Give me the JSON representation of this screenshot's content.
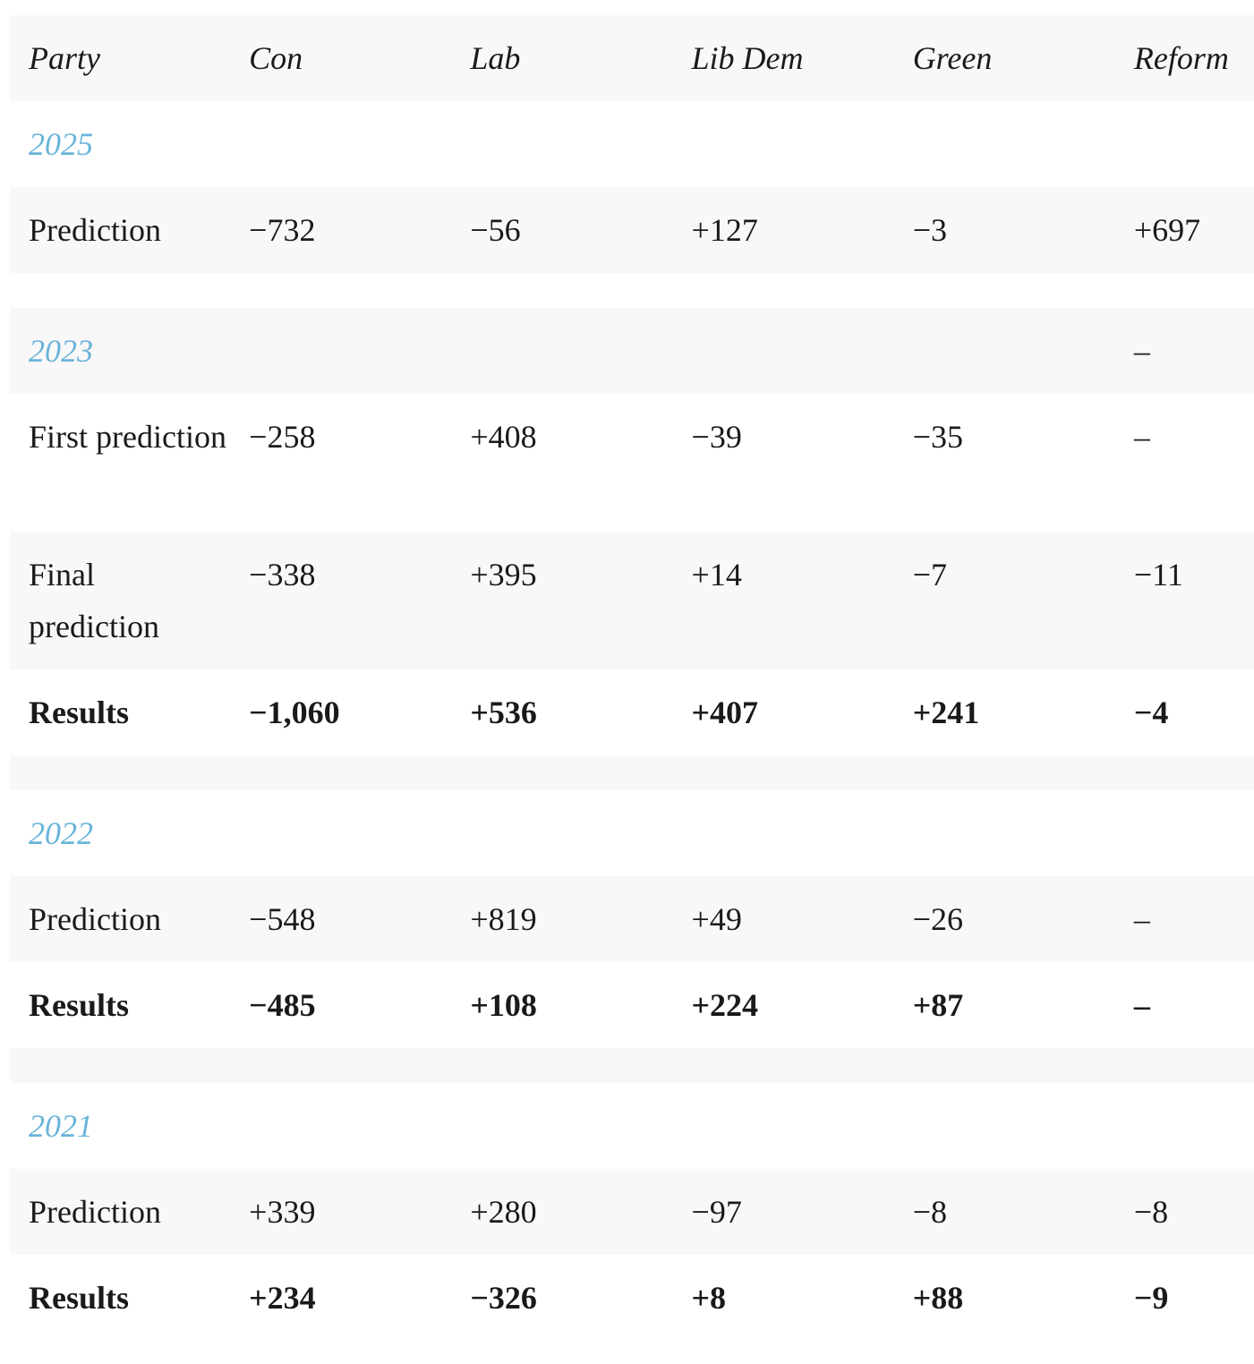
{
  "header": [
    "Party",
    "Con",
    "Lab",
    "Lib Dem",
    "Green",
    "Reform"
  ],
  "sections": [
    {
      "year": "2025",
      "year_reform": "",
      "rows": [
        {
          "label": "Prediction",
          "values": [
            "−732",
            "−56",
            "+127",
            "−3",
            "+697"
          ]
        }
      ]
    },
    {
      "year": "2023",
      "year_reform": "–",
      "rows": [
        {
          "label": "First prediction",
          "values": [
            "−258",
            "+408",
            "−39",
            "−35",
            "–"
          ]
        },
        {
          "label": "Final prediction",
          "values": [
            "−338",
            "+395",
            "+14",
            "−7",
            "−11"
          ]
        },
        {
          "label": "Results",
          "values": [
            "−1,060",
            "+536",
            "+407",
            "+241",
            "−4"
          ]
        }
      ]
    },
    {
      "year": "2022",
      "year_reform": "",
      "rows": [
        {
          "label": "Prediction",
          "values": [
            "−548",
            "+819",
            "+49",
            "−26",
            "–"
          ]
        },
        {
          "label": "Results",
          "values": [
            "−485",
            "+108",
            "+224",
            "+87",
            "–"
          ]
        }
      ]
    },
    {
      "year": "2021",
      "year_reform": "",
      "rows": [
        {
          "label": "Prediction",
          "values": [
            "+339",
            "+280",
            "−97",
            "−8",
            "−8"
          ]
        },
        {
          "label": "Results",
          "values": [
            "+234",
            "−326",
            "+8",
            "+88",
            "−9"
          ]
        }
      ]
    }
  ],
  "colors": {
    "year_accent": "#6bb4da",
    "stripe": "#f8f8f8",
    "text": "#1a1a1a"
  }
}
